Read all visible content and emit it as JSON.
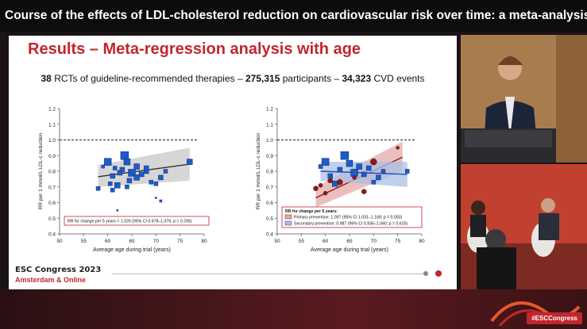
{
  "stream": {
    "title": "Course of the effects of LDL-cholesterol reduction on cardiovascular risk over time: a meta-analysis ..."
  },
  "slide": {
    "title": "Results – Meta-regression analysis with age",
    "subtitle": {
      "rcts_value": "38",
      "rcts_label": " RCTs of guideline-recommended therapies",
      "sep1": " – ",
      "participants_value": "275,315",
      "participants_label": " participants",
      "sep2": " – ",
      "events_value": "34,323",
      "events_label": " CVD events"
    },
    "footer": {
      "brand": "ESC Congress 2023",
      "sub": "Amsterdam & Online"
    }
  },
  "colors": {
    "accent_red": "#c0272d",
    "study_blue": "#1f5bc6",
    "primary_red": "#8b1a1a",
    "band_grey": "#cfcfcf",
    "band_red": "#e6a9a9",
    "band_blue": "#a9bfe6"
  },
  "overlay": {
    "hashtag": "#ESCCongress"
  },
  "chart_data": [
    {
      "type": "scatter",
      "xlabel": "Average age during trial (years)",
      "ylabel": "RR per 1 mmol/L LDL-c reduction",
      "xlim": [
        50,
        80
      ],
      "ylim": [
        0.4,
        1.2
      ],
      "x_ticks": [
        "50",
        "55",
        "60",
        "65",
        "70",
        "75",
        "80"
      ],
      "y_ticks": [
        "0.4",
        "0.5",
        "0.6",
        "0.7",
        "0.8",
        "0.9",
        "1.0",
        "1.1",
        "1.2"
      ],
      "legend_text": "RR for change per 5 years = 1.026 (95% CI 0.978–1.076; p = 0.295)",
      "reference_line": 1.0,
      "fit": {
        "x": [
          58,
          77
        ],
        "y": [
          0.765,
          0.845
        ],
        "band_lo": [
          0.7,
          0.74
        ],
        "band_hi": [
          0.84,
          0.95
        ]
      },
      "series": [
        {
          "x": [
            58,
            59,
            60,
            60.5,
            61,
            61.5,
            62,
            62.5,
            63,
            63.5,
            64,
            64.5,
            65,
            66,
            67,
            68,
            69,
            70,
            71,
            72,
            77,
            61,
            64,
            66,
            68,
            62,
            70,
            71
          ],
          "y": [
            0.69,
            0.83,
            0.86,
            0.72,
            0.77,
            0.82,
            0.71,
            0.79,
            0.81,
            0.9,
            0.86,
            0.74,
            0.79,
            0.83,
            0.78,
            0.8,
            0.73,
            0.72,
            0.76,
            0.8,
            0.86,
            0.68,
            0.7,
            0.76,
            0.82,
            0.55,
            0.63,
            0.61
          ],
          "sizes": [
            5,
            4,
            9,
            5,
            6,
            5,
            7,
            6,
            6,
            10,
            8,
            6,
            9,
            7,
            6,
            6,
            5,
            5,
            6,
            5,
            7,
            5,
            5,
            7,
            6,
            2,
            2,
            3
          ]
        }
      ]
    },
    {
      "type": "scatter",
      "xlabel": "Average age during trial (years)",
      "ylabel": "RR per 1 mmol/L LDL-c reduction",
      "xlim": [
        50,
        80
      ],
      "ylim": [
        0.4,
        1.2
      ],
      "x_ticks": [
        "50",
        "55",
        "60",
        "65",
        "70",
        "75",
        "80"
      ],
      "y_ticks": [
        "0.4",
        "0.5",
        "0.6",
        "0.7",
        "0.8",
        "0.9",
        "1.0",
        "1.1",
        "1.2"
      ],
      "legend_title": "RR for change per 5 years:",
      "reference_line": 1.0,
      "series": [
        {
          "name": "Primary prevention:",
          "value_text": "1.097 (95% CI 1.031–1.168; p = 0.003)",
          "x": [
            58,
            59,
            60,
            61,
            63,
            66,
            68,
            70,
            75
          ],
          "y": [
            0.69,
            0.71,
            0.66,
            0.74,
            0.73,
            0.76,
            0.67,
            0.86,
            0.95
          ],
          "sizes": [
            6,
            5,
            5,
            6,
            7,
            5,
            6,
            8,
            4
          ],
          "fit": {
            "x": [
              58,
              76
            ],
            "y": [
              0.63,
              0.89
            ],
            "band_lo": [
              0.57,
              0.8
            ],
            "band_hi": [
              0.7,
              0.99
            ]
          }
        },
        {
          "name": "Secondary prevention:",
          "value_text": "0.987 (95% CI 0.936–1.040; p = 0.625)",
          "x": [
            59,
            60,
            61,
            62,
            63,
            64,
            65,
            66,
            67,
            68,
            69,
            70,
            71,
            72,
            77
          ],
          "y": [
            0.83,
            0.86,
            0.77,
            0.72,
            0.81,
            0.9,
            0.85,
            0.79,
            0.83,
            0.78,
            0.82,
            0.73,
            0.76,
            0.8,
            0.8
          ],
          "sizes": [
            5,
            9,
            6,
            7,
            6,
            10,
            8,
            9,
            7,
            6,
            6,
            5,
            6,
            5,
            5
          ],
          "fit": {
            "x": [
              59,
              77
            ],
            "y": [
              0.8,
              0.78
            ],
            "band_lo": [
              0.74,
              0.7
            ],
            "band_hi": [
              0.86,
              0.86
            ]
          }
        }
      ]
    }
  ]
}
